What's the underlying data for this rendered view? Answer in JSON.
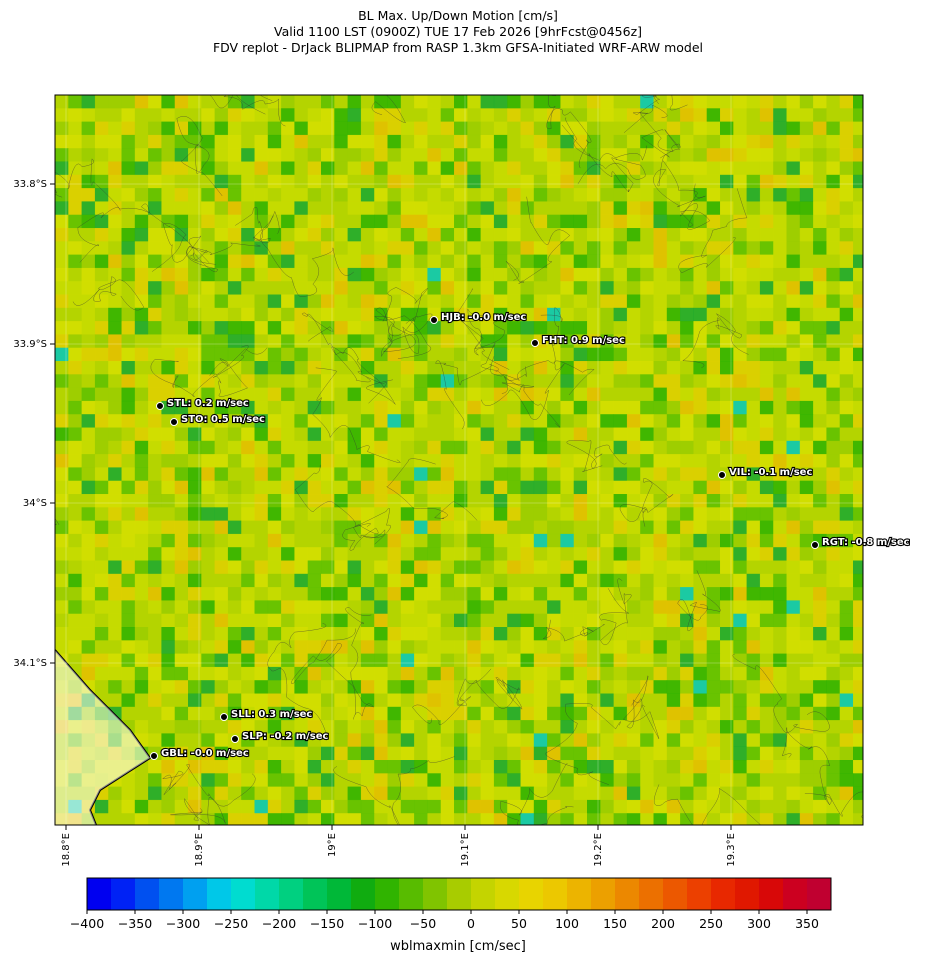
{
  "title": [
    "BL Max. Up/Down Motion [cm/s]",
    "Valid 1100 LST (0900Z) TUE 17 Feb 2026 [9hrFcst@0456z]",
    "FDV replot - DrJack BLIPMAP from RASP 1.3km GFSA-Initiated WRF-ARW model"
  ],
  "map": {
    "lat_ticks": [
      "33.8°S",
      "33.9°S",
      "34°S",
      "34.1°S"
    ],
    "lon_ticks": [
      "18.8°E",
      "18.9°E",
      "19°E",
      "19.1°E",
      "19.2°E",
      "19.3°E"
    ],
    "stations": [
      {
        "label": "HJB: -0.0 m/sec"
      },
      {
        "label": "FHT: 0.9 m/sec"
      },
      {
        "label": "STL: 0.2 m/sec"
      },
      {
        "label": "STO: 0.5 m/sec"
      },
      {
        "label": "VIL: -0.1 m/sec"
      },
      {
        "label": "RGT: -0.8 m/sec"
      },
      {
        "label": "SLL: 0.3 m/sec"
      },
      {
        "label": "SLP: -0.2 m/sec"
      },
      {
        "label": "GBL: -0.0 m/sec"
      }
    ]
  },
  "colorbar": {
    "lim": [
      -400,
      375
    ],
    "ticks": [
      {
        "value": -400,
        "label": "−400"
      },
      {
        "value": -350,
        "label": "−350"
      },
      {
        "value": -300,
        "label": "−300"
      },
      {
        "value": -250,
        "label": "−250"
      },
      {
        "value": -200,
        "label": "−200"
      },
      {
        "value": -150,
        "label": "−150"
      },
      {
        "value": -100,
        "label": "−100"
      },
      {
        "value": -50,
        "label": "−50"
      },
      0,
      50,
      100,
      150,
      200,
      250,
      300,
      350
    ],
    "label": "wblmaxmin [cm/sec]"
  }
}
